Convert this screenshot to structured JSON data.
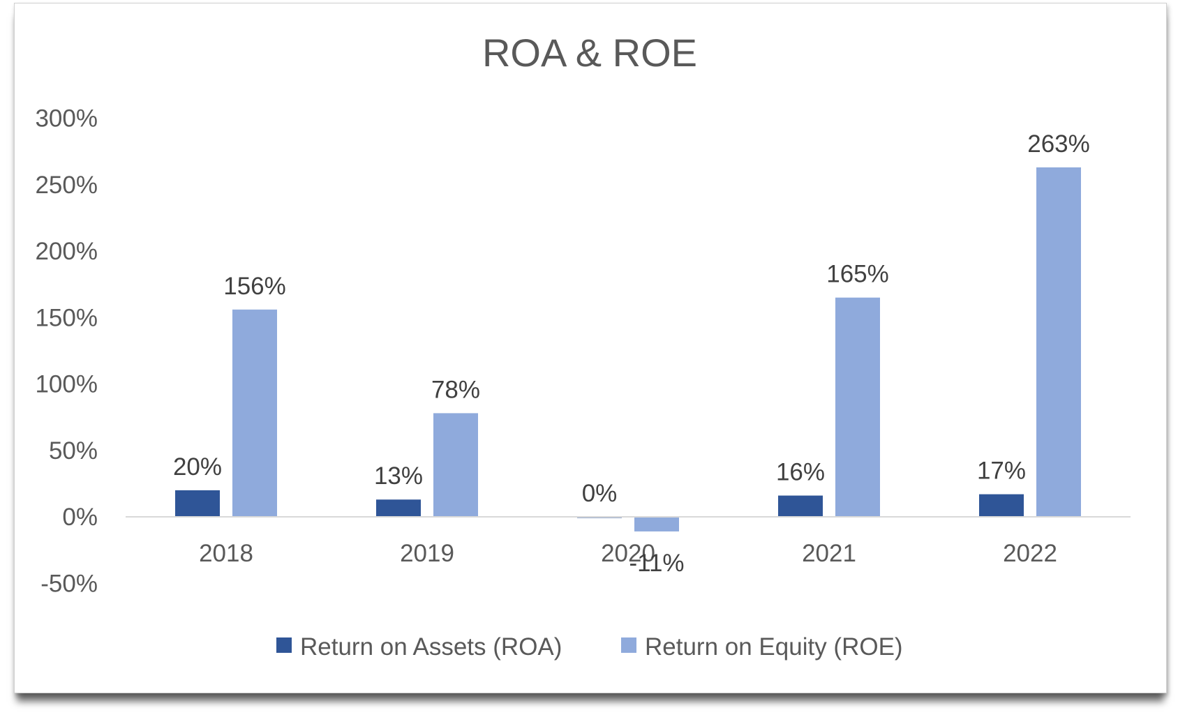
{
  "chart_data": {
    "type": "bar",
    "title": "ROA & ROE",
    "categories": [
      "2018",
      "2019",
      "2020",
      "2021",
      "2022"
    ],
    "series": [
      {
        "name": "Return on Assets (ROA)",
        "color": "#2f5597",
        "values": [
          20,
          13,
          0,
          16,
          17
        ],
        "labels": [
          "20%",
          "13%",
          "0%",
          "16%",
          "17%"
        ]
      },
      {
        "name": "Return on Equity (ROE)",
        "color": "#8faadc",
        "values": [
          156,
          78,
          -11,
          165,
          263
        ],
        "labels": [
          "156%",
          "78%",
          "-11%",
          "165%",
          "263%"
        ]
      }
    ],
    "ylim": [
      -50,
      300
    ],
    "yticks": [
      300,
      250,
      200,
      150,
      100,
      50,
      0,
      -50
    ],
    "ytick_labels": [
      "300%",
      "250%",
      "200%",
      "150%",
      "100%",
      "50%",
      "0%",
      "-50%"
    ],
    "xlabel": "",
    "ylabel": "",
    "gridlines": false,
    "legend_position": "bottom"
  }
}
